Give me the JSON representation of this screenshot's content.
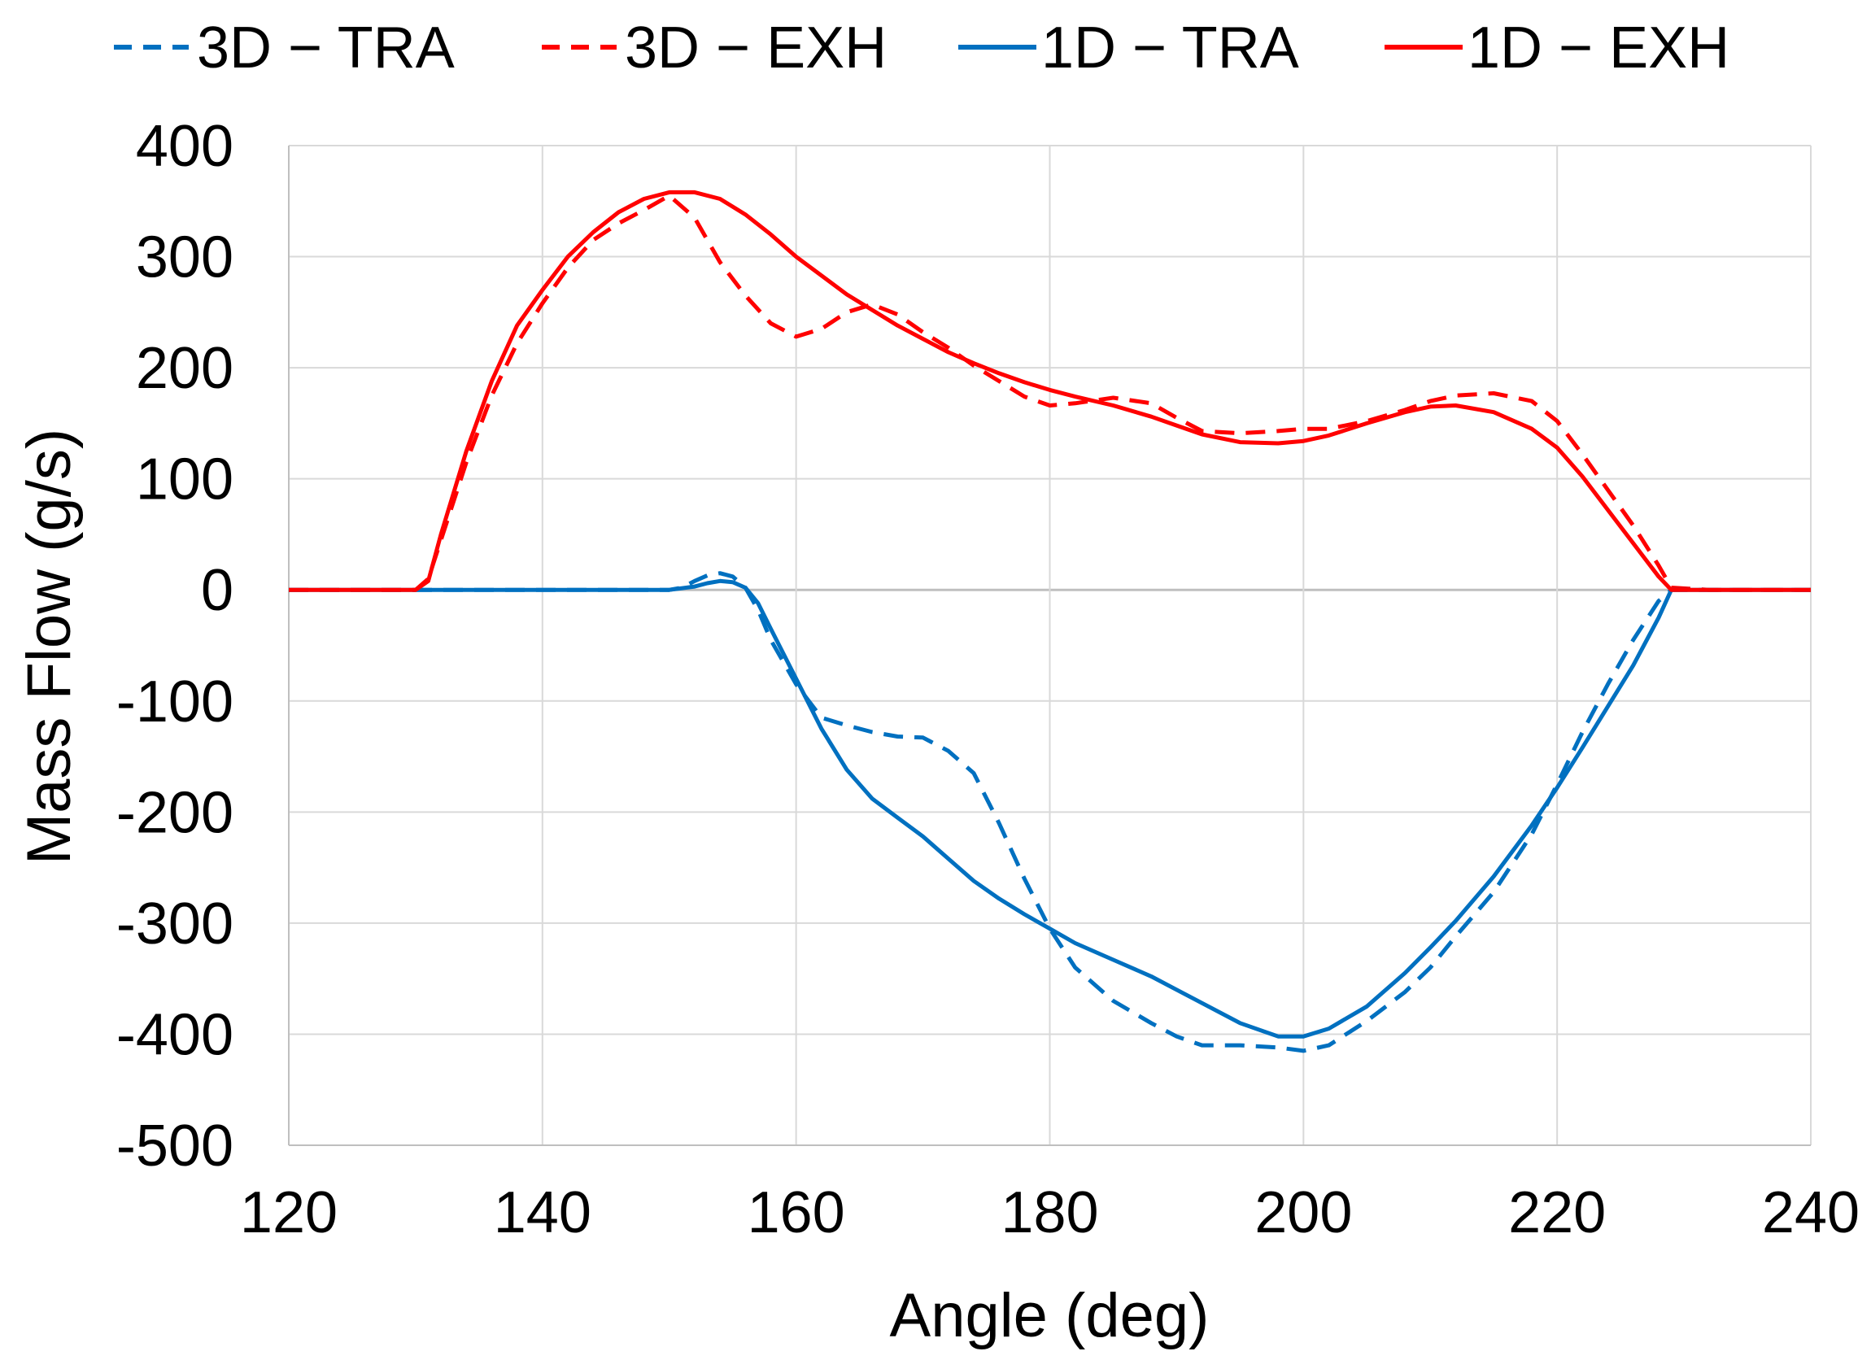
{
  "chart_data": {
    "type": "line",
    "title": "",
    "xlabel": "Angle (deg)",
    "ylabel": "Mass Flow (g/s)",
    "xlim": [
      120,
      240
    ],
    "ylim": [
      -500,
      400
    ],
    "xticks": [
      120,
      140,
      160,
      180,
      200,
      220,
      240
    ],
    "yticks": [
      400,
      300,
      200,
      100,
      0,
      -100,
      -200,
      -300,
      -400,
      -500
    ],
    "xtick_labels": [
      "120",
      "140",
      "160",
      "180",
      "200",
      "220",
      "240"
    ],
    "ytick_labels": [
      "400",
      "300",
      "200",
      "100",
      "0",
      "-100",
      "-200",
      "-300",
      "-400",
      "-500"
    ],
    "grid": true,
    "legend_position": "top",
    "series": [
      {
        "name": "3D − TRA",
        "color": "#0070C0",
        "dash": "dashed",
        "x": [
          120,
          130,
          140,
          150,
          151,
          152,
          153,
          154,
          155,
          156,
          157,
          158,
          160,
          162,
          164,
          166,
          168,
          170,
          172,
          174,
          176,
          178,
          180,
          182,
          185,
          188,
          190,
          192,
          195,
          198,
          200,
          202,
          205,
          208,
          210,
          212,
          215,
          218,
          220,
          222,
          224,
          226,
          228,
          229,
          232,
          240
        ],
        "values": [
          0,
          0,
          0,
          0,
          2,
          8,
          13,
          15,
          12,
          2,
          -18,
          -45,
          -85,
          -115,
          -122,
          -128,
          -132,
          -133,
          -145,
          -165,
          -210,
          -260,
          -305,
          -340,
          -370,
          -390,
          -402,
          -410,
          -410,
          -412,
          -415,
          -410,
          -388,
          -362,
          -340,
          -312,
          -272,
          -220,
          -175,
          -128,
          -85,
          -45,
          -10,
          0,
          0,
          0
        ]
      },
      {
        "name": "3D − EXH",
        "color": "#FF0000",
        "dash": "dashed",
        "x": [
          120,
          130,
          131,
          132,
          134,
          136,
          138,
          140,
          142,
          144,
          146,
          148,
          150,
          152,
          154,
          156,
          158,
          160,
          162,
          164,
          166,
          168,
          170,
          172,
          174,
          176,
          178,
          180,
          182,
          185,
          188,
          190,
          192,
          195,
          198,
          200,
          202,
          205,
          208,
          210,
          212,
          215,
          218,
          220,
          222,
          224,
          226,
          228,
          229,
          232,
          240
        ],
        "values": [
          0,
          0,
          10,
          45,
          115,
          175,
          222,
          258,
          290,
          315,
          330,
          342,
          355,
          335,
          295,
          265,
          240,
          228,
          235,
          250,
          257,
          248,
          232,
          218,
          202,
          188,
          174,
          166,
          168,
          173,
          168,
          155,
          143,
          141,
          143,
          145,
          145,
          152,
          162,
          170,
          175,
          177,
          170,
          152,
          122,
          90,
          58,
          22,
          2,
          0,
          0
        ]
      },
      {
        "name": "1D − TRA",
        "color": "#0070C0",
        "dash": "solid",
        "x": [
          120,
          130,
          140,
          150,
          152,
          153,
          154,
          155,
          156,
          157,
          158,
          160,
          162,
          164,
          166,
          168,
          170,
          172,
          174,
          176,
          178,
          180,
          182,
          185,
          188,
          190,
          192,
          195,
          198,
          200,
          202,
          205,
          208,
          210,
          212,
          215,
          218,
          220,
          222,
          224,
          226,
          228,
          229,
          232,
          240
        ],
        "values": [
          0,
          0,
          0,
          0,
          3,
          6,
          8,
          7,
          2,
          -12,
          -35,
          -80,
          -125,
          -162,
          -188,
          -205,
          -222,
          -242,
          -262,
          -278,
          -292,
          -305,
          -318,
          -333,
          -348,
          -360,
          -372,
          -390,
          -402,
          -402,
          -395,
          -375,
          -345,
          -322,
          -298,
          -258,
          -212,
          -178,
          -142,
          -105,
          -68,
          -25,
          0,
          0,
          0
        ]
      },
      {
        "name": "1D − EXH",
        "color": "#FF0000",
        "dash": "solid",
        "x": [
          120,
          130,
          131,
          132,
          134,
          136,
          138,
          140,
          142,
          144,
          146,
          148,
          150,
          152,
          154,
          156,
          158,
          160,
          162,
          164,
          166,
          168,
          170,
          172,
          174,
          176,
          178,
          180,
          182,
          185,
          188,
          190,
          192,
          195,
          198,
          200,
          202,
          205,
          208,
          210,
          212,
          215,
          218,
          220,
          222,
          224,
          226,
          228,
          229,
          232,
          240
        ],
        "values": [
          0,
          0,
          8,
          50,
          125,
          188,
          238,
          270,
          300,
          322,
          340,
          352,
          358,
          358,
          352,
          338,
          320,
          300,
          283,
          266,
          252,
          238,
          226,
          214,
          204,
          195,
          187,
          180,
          174,
          166,
          156,
          148,
          140,
          133,
          132,
          134,
          139,
          150,
          160,
          165,
          166,
          160,
          145,
          128,
          102,
          72,
          42,
          12,
          0,
          0,
          0
        ]
      }
    ]
  }
}
